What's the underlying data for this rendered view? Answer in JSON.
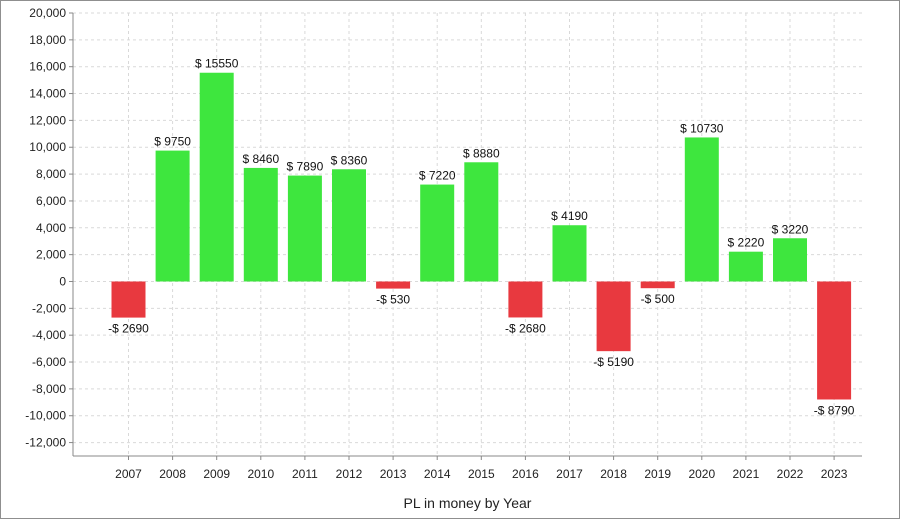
{
  "chart_data": {
    "type": "bar",
    "title": "",
    "xlabel": "PL in money by Year",
    "ylabel": "",
    "categories": [
      "2007",
      "2008",
      "2009",
      "2010",
      "2011",
      "2012",
      "2013",
      "2014",
      "2015",
      "2016",
      "2017",
      "2018",
      "2019",
      "2020",
      "2021",
      "2022",
      "2023"
    ],
    "values": [
      -2690,
      9750,
      15550,
      8460,
      7890,
      8360,
      -530,
      7220,
      8880,
      -2680,
      4190,
      -5190,
      -500,
      10730,
      2220,
      3220,
      -8790
    ],
    "data_labels": [
      "-$ 2690",
      "$ 9750",
      "$ 15550",
      "$ 8460",
      "$ 7890",
      "$ 8360",
      "-$ 530",
      "$ 7220",
      "$ 8880",
      "-$ 2680",
      "$ 4190",
      "-$ 5190",
      "-$ 500",
      "$ 10730",
      "$ 2220",
      "$ 3220",
      "-$ 8790"
    ],
    "ylim": [
      -13000,
      20000
    ],
    "yticks": [
      -12000,
      -10000,
      -8000,
      -6000,
      -4000,
      -2000,
      0,
      2000,
      4000,
      6000,
      8000,
      10000,
      12000,
      14000,
      16000,
      18000,
      20000
    ],
    "ytick_labels": [
      "-12,000",
      "-10,000",
      "-8,000",
      "-6,000",
      "-4,000",
      "-2,000",
      "0",
      "2,000",
      "4,000",
      "6,000",
      "8,000",
      "10,000",
      "12,000",
      "14,000",
      "16,000",
      "18,000",
      "20,000"
    ],
    "grid": true,
    "legend": "none",
    "colors": {
      "positive": "#3ee63e",
      "negative": "#e8393f",
      "axis": "#888888",
      "grid": "#d9d9d9"
    }
  }
}
